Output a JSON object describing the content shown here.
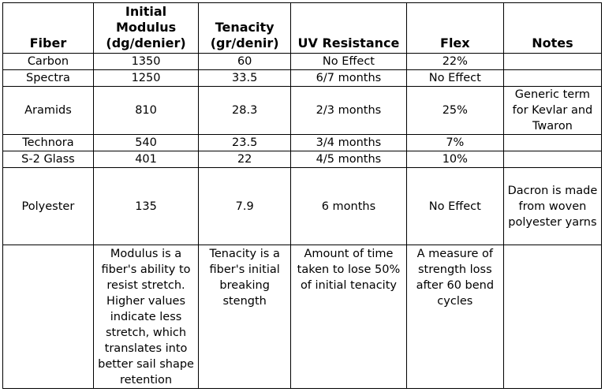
{
  "headers": {
    "fiber": "Fiber",
    "modulus": "Initial Modulus (dg/denier)",
    "tenacity": "Tenacity (gr/denir)",
    "uv": "UV Resistance",
    "flex": "Flex",
    "notes": "Notes"
  },
  "rows": [
    {
      "fiber": "Carbon",
      "modulus": "1350",
      "tenacity": "60",
      "uv": "No Effect",
      "flex": "22%",
      "notes": ""
    },
    {
      "fiber": "Spectra",
      "modulus": "1250",
      "tenacity": "33.5",
      "uv": "6/7 months",
      "flex": "No Effect",
      "notes": ""
    },
    {
      "fiber": "Aramids",
      "modulus": "810",
      "tenacity": "28.3",
      "uv": "2/3 months",
      "flex": "25%",
      "notes": "Generic term for Kevlar and Twaron"
    },
    {
      "fiber": "Technora",
      "modulus": "540",
      "tenacity": "23.5",
      "uv": "3/4 months",
      "flex": "7%",
      "notes": ""
    },
    {
      "fiber": "S-2 Glass",
      "modulus": "401",
      "tenacity": "22",
      "uv": "4/5 months",
      "flex": "10%",
      "notes": ""
    },
    {
      "fiber": "Polyester",
      "modulus": "135",
      "tenacity": "7.9",
      "uv": "6 months",
      "flex": "No Effect",
      "notes": "Dacron is made from woven polyester yarns"
    }
  ],
  "definitions": {
    "modulus": "Modulus is a fiber's ability to resist stretch. Higher values indicate less stretch, which translates into better sail shape retention",
    "tenacity": "Tenacity is a fiber's initial breaking stength",
    "uv": "Amount of time taken to lose 50% of initial tenacity",
    "flex": "A measure of strength loss after 60 bend cycles"
  }
}
